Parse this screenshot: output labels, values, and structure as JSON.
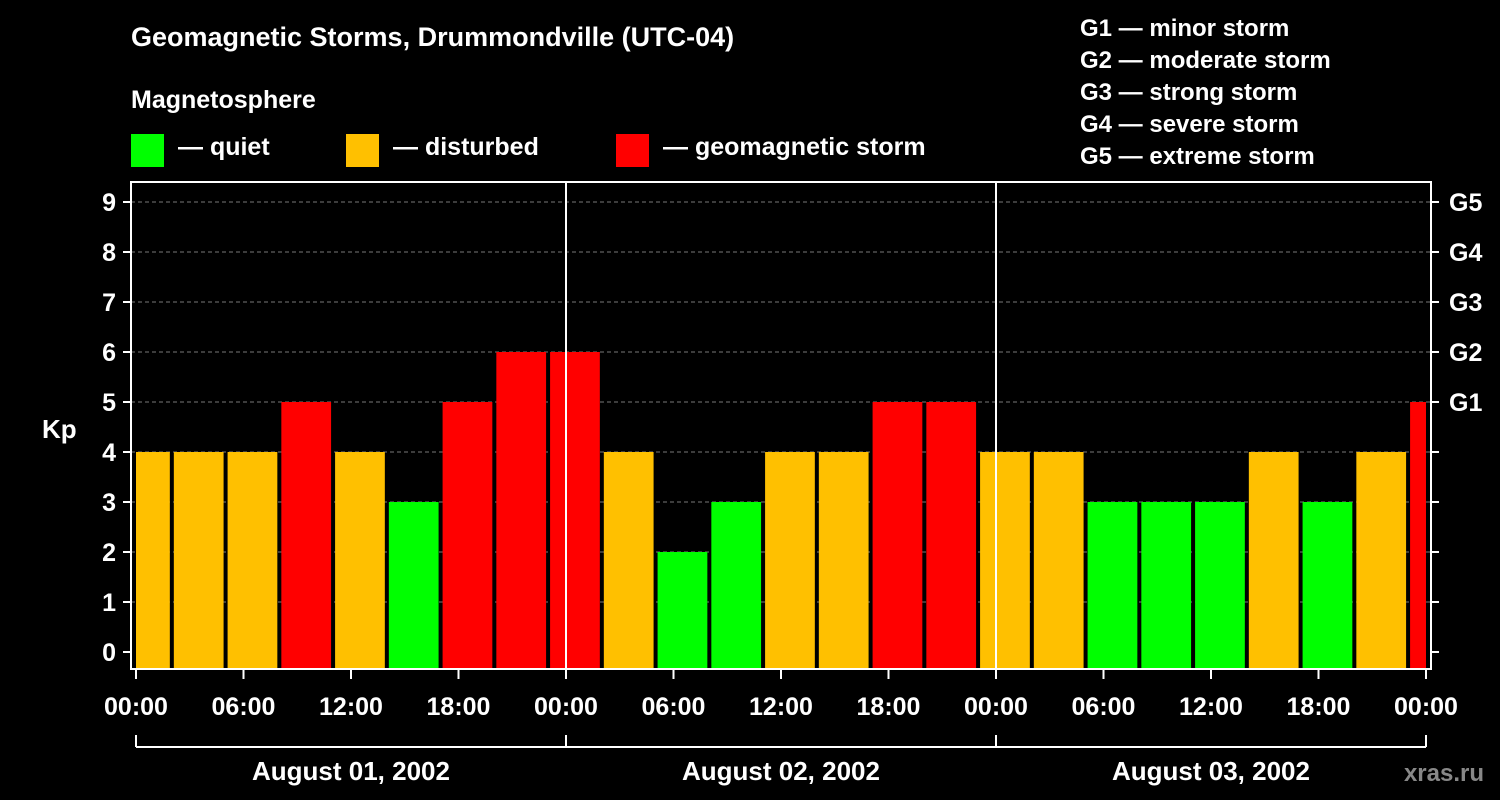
{
  "chart_data": {
    "type": "bar",
    "title": "Geomagnetic Storms, Drummondville (UTC-04)",
    "subtitle": "Magnetosphere",
    "ylabel": "Kp",
    "ylim": [
      0,
      9
    ],
    "yticks": [
      "0",
      "1",
      "2",
      "3",
      "4",
      "5",
      "6",
      "7",
      "8",
      "9"
    ],
    "right_ticks": [
      {
        "kp": 5,
        "label": "G1"
      },
      {
        "kp": 6,
        "label": "G2"
      },
      {
        "kp": 7,
        "label": "G3"
      },
      {
        "kp": 8,
        "label": "G4"
      },
      {
        "kp": 9,
        "label": "G5"
      }
    ],
    "x_range_hours": [
      0,
      72
    ],
    "xtick_labels": [
      "00:00",
      "06:00",
      "12:00",
      "18:00",
      "00:00",
      "06:00",
      "12:00",
      "18:00",
      "00:00",
      "06:00",
      "12:00",
      "18:00",
      "00:00"
    ],
    "days": [
      "August 01, 2002",
      "August 02, 2002",
      "August 03, 2002"
    ],
    "legend": [
      {
        "label": "— quiet",
        "color": "#00ff00"
      },
      {
        "label": "— disturbed",
        "color": "#ffc000"
      },
      {
        "label": "— geomagnetic storm",
        "color": "#ff0000"
      }
    ],
    "storm_scale": [
      "G1 — minor storm",
      "G2 — moderate storm",
      "G3 — strong storm",
      "G4 — severe storm",
      "G5 — extreme storm"
    ],
    "bars": [
      {
        "start": 0,
        "end": 2,
        "kp": 4,
        "level": "disturbed"
      },
      {
        "start": 2,
        "end": 5,
        "kp": 4,
        "level": "disturbed"
      },
      {
        "start": 5,
        "end": 8,
        "kp": 4,
        "level": "disturbed"
      },
      {
        "start": 8,
        "end": 11,
        "kp": 5,
        "level": "storm"
      },
      {
        "start": 11,
        "end": 14,
        "kp": 4,
        "level": "disturbed"
      },
      {
        "start": 14,
        "end": 17,
        "kp": 3,
        "level": "quiet"
      },
      {
        "start": 17,
        "end": 20,
        "kp": 5,
        "level": "storm"
      },
      {
        "start": 20,
        "end": 23,
        "kp": 6,
        "level": "storm"
      },
      {
        "start": 23,
        "end": 26,
        "kp": 6,
        "level": "storm"
      },
      {
        "start": 26,
        "end": 29,
        "kp": 4,
        "level": "disturbed"
      },
      {
        "start": 29,
        "end": 32,
        "kp": 2,
        "level": "quiet"
      },
      {
        "start": 32,
        "end": 35,
        "kp": 3,
        "level": "quiet"
      },
      {
        "start": 35,
        "end": 38,
        "kp": 4,
        "level": "disturbed"
      },
      {
        "start": 38,
        "end": 41,
        "kp": 4,
        "level": "disturbed"
      },
      {
        "start": 41,
        "end": 44,
        "kp": 5,
        "level": "storm"
      },
      {
        "start": 44,
        "end": 47,
        "kp": 5,
        "level": "storm"
      },
      {
        "start": 47,
        "end": 50,
        "kp": 4,
        "level": "disturbed"
      },
      {
        "start": 50,
        "end": 53,
        "kp": 4,
        "level": "disturbed"
      },
      {
        "start": 53,
        "end": 56,
        "kp": 3,
        "level": "quiet"
      },
      {
        "start": 56,
        "end": 59,
        "kp": 3,
        "level": "quiet"
      },
      {
        "start": 59,
        "end": 62,
        "kp": 3,
        "level": "quiet"
      },
      {
        "start": 62,
        "end": 65,
        "kp": 4,
        "level": "disturbed"
      },
      {
        "start": 65,
        "end": 68,
        "kp": 3,
        "level": "quiet"
      },
      {
        "start": 68,
        "end": 71,
        "kp": 4,
        "level": "disturbed"
      },
      {
        "start": 71,
        "end": 72,
        "kp": 5,
        "level": "storm"
      }
    ],
    "colors": {
      "quiet": "#00ff00",
      "disturbed": "#ffc000",
      "storm": "#ff0000",
      "grid": "#777777",
      "axis": "#ffffff"
    }
  },
  "watermark": "xras.ru"
}
